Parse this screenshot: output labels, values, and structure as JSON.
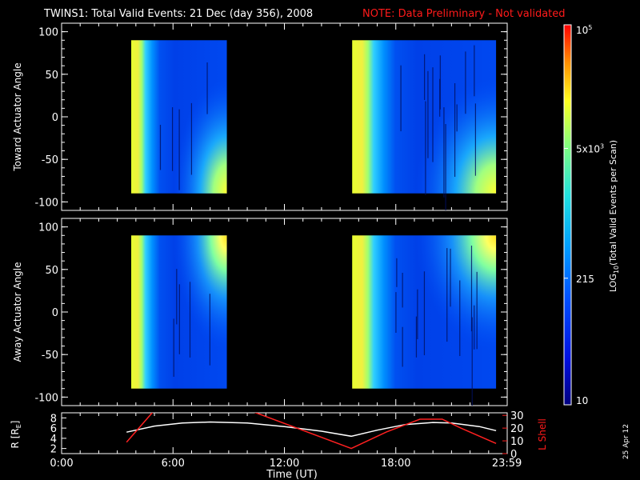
{
  "title": {
    "main": "TWINS1: Total Valid Events: 21 Dec (day 356), 2008",
    "note": "NOTE: Data Preliminary - Not validated"
  },
  "colors": {
    "note": "#ff1a1a",
    "l_shell_line": "#ff2020",
    "r_line": "#ffffff",
    "background": "#000000"
  },
  "date_stamp": "25 Apr 12",
  "colorbar": {
    "label_prefix": "LOG",
    "label_sub": "10",
    "label_suffix": "(Total Valid Events per Scan)",
    "tick_labels": [
      {
        "base": "10",
        "exp": "5",
        "value": 100000
      },
      {
        "base": "5x10",
        "exp": "3",
        "value": 5000
      },
      {
        "base": "215",
        "exp": "",
        "value": 215
      },
      {
        "base": "10",
        "exp": "",
        "value": 10
      }
    ],
    "scale": "log",
    "range": [
      10,
      100000
    ]
  },
  "chart_data": [
    {
      "type": "heatmap",
      "name": "toward",
      "ylabel": "Toward Actuator Angle",
      "xlim": [
        0,
        24
      ],
      "ylim": [
        -110,
        110
      ],
      "yticks": [
        100,
        50,
        0,
        -50,
        -100
      ],
      "ytick_labels": [
        "100",
        "50",
        "0",
        "-50",
        "-100"
      ],
      "data_blocks": [
        {
          "start_hour": 3.75,
          "end_hour": 8.9,
          "angle_range": [
            -90,
            90
          ],
          "hot_corner": "bottom"
        },
        {
          "start_hour": 15.65,
          "end_hour": 23.4,
          "angle_range": [
            -90,
            90
          ],
          "hot_corner": "bottom"
        }
      ]
    },
    {
      "type": "heatmap",
      "name": "away",
      "ylabel": "Away Actuator Angle",
      "xlim": [
        0,
        24
      ],
      "ylim": [
        -110,
        110
      ],
      "yticks": [
        100,
        50,
        0,
        -50,
        -100
      ],
      "ytick_labels": [
        "100",
        "50",
        "0",
        "-50",
        "-100"
      ],
      "data_blocks": [
        {
          "start_hour": 3.75,
          "end_hour": 8.9,
          "angle_range": [
            -90,
            90
          ],
          "hot_corner": "top"
        },
        {
          "start_hour": 15.65,
          "end_hour": 23.4,
          "angle_range": [
            -90,
            90
          ],
          "hot_corner": "top"
        }
      ]
    },
    {
      "type": "line",
      "name": "orbit",
      "xlabel": "Time (UT)",
      "ylabel_left_prefix": "R [R",
      "ylabel_left_sub": "E",
      "ylabel_left_suffix": "]",
      "ylabel_right": "L Shell",
      "xlim": [
        0,
        24
      ],
      "xticks": [
        0,
        6,
        12,
        18,
        23.983
      ],
      "xtick_labels": [
        "0:00",
        "6:00",
        "12:00",
        "18:00",
        "23:59"
      ],
      "ylim_left": [
        1,
        9
      ],
      "yticks_left": [
        2,
        4,
        6,
        8
      ],
      "ytick_labels_left": [
        "2",
        "4",
        "6",
        "8"
      ],
      "ylim_right": [
        0,
        32
      ],
      "yticks_right": [
        0,
        10,
        20,
        30
      ],
      "ytick_labels_right": [
        "0",
        "10",
        "20",
        "30"
      ],
      "series": [
        {
          "axis": "left",
          "x": [
            3.5,
            5,
            6.5,
            8,
            10,
            12,
            14,
            15.6,
            17,
            18.5,
            20,
            21,
            22.5,
            23.4
          ],
          "y": [
            5.2,
            6.4,
            7.0,
            7.2,
            7.0,
            6.3,
            5.4,
            4.4,
            5.6,
            6.7,
            7.1,
            7.0,
            6.3,
            5.5
          ]
        },
        {
          "axis": "right",
          "x": [
            3.5,
            5.0,
            10.1,
            15.6,
            17.5,
            19.3,
            20.5,
            21.5,
            23.4
          ],
          "y": [
            9,
            34,
            34,
            4,
            17,
            27,
            27,
            20,
            8
          ]
        }
      ]
    }
  ]
}
